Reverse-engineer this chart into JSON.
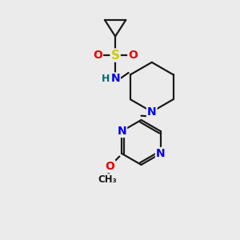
{
  "bg_color": "#ebebeb",
  "bond_color": "#1a1a1a",
  "bond_width": 1.6,
  "atom_colors": {
    "N": "#0000ee",
    "O": "#ee0000",
    "S": "#cccc00",
    "H": "#007070",
    "C": "#1a1a1a"
  }
}
